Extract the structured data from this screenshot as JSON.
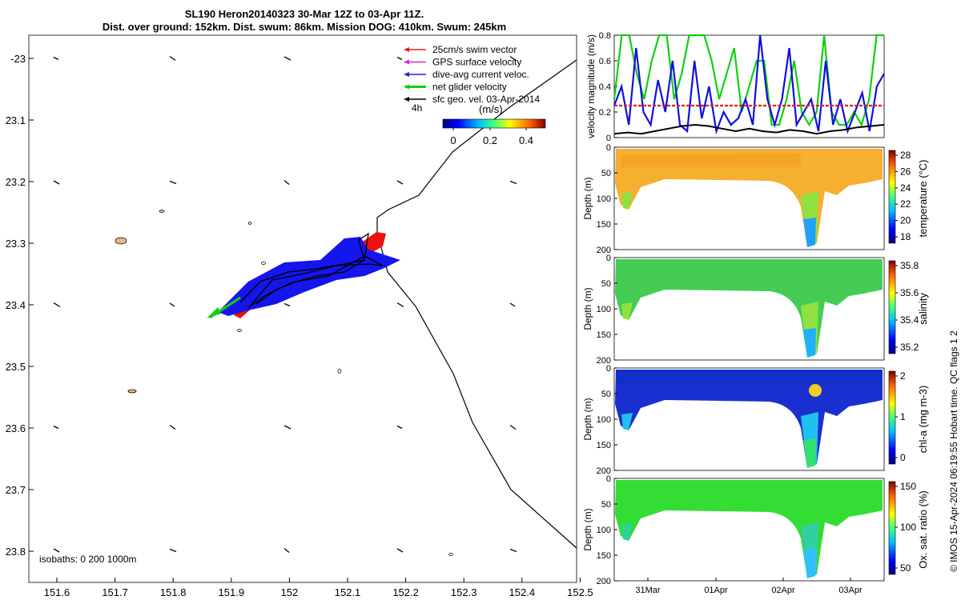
{
  "title": {
    "line1": "SL190 Heron20140323 30-Mar 12Z to 03-Apr 11Z.",
    "line2": "Dist. over ground: 152km. Dist. swum: 86km. Mission DOG: 410km. Swum: 245km"
  },
  "map": {
    "x_ticks": [
      "151.6",
      "151.7",
      "151.8",
      "151.9",
      "152",
      "152.1",
      "152.2",
      "152.3",
      "152.4",
      "152.5"
    ],
    "y_ticks": [
      "-23",
      "23.1",
      "23.2",
      "23.3",
      "23.4",
      "23.5",
      "23.6",
      "23.7",
      "23.8"
    ],
    "xlim": [
      151.55,
      152.52
    ],
    "ylim": [
      -22.96,
      -23.86
    ],
    "legend": [
      {
        "label": "25cm/s swim vector",
        "color": "#e02020"
      },
      {
        "label": "GPS surface velocity",
        "color": "#e020e0"
      },
      {
        "label": "dive-avg current veloc.",
        "color": "#2020e0"
      },
      {
        "label": "net glider velocity",
        "color": "#10d010"
      },
      {
        "label": "sfc geo. vel. 03-Apr-2014",
        "color": "#000000"
      }
    ],
    "legend_4h": "4h",
    "colorbar_unit": "(m/s)",
    "colorbar_ticks": [
      "0",
      "0.2",
      "0.4"
    ],
    "isobaths_label": "isobaths: 0    200  1000m"
  },
  "chart_data": [
    {
      "type": "line",
      "ylabel": "velocity magnitude (m/s)",
      "ylim": [
        0,
        0.8
      ],
      "y_ticks": [
        "0",
        "0.2",
        "0.4",
        "0.6",
        "0.8"
      ],
      "series": [
        {
          "name": "net glider velocity",
          "color": "#10d010",
          "values": [
            0.3,
            0.8,
            0.8,
            0.5,
            0.3,
            0.6,
            0.8,
            0.8,
            0.3,
            0.5,
            0.8,
            0.8,
            0.8,
            0.6,
            0.3,
            0.5,
            0.7,
            0.2,
            0.4,
            0.6,
            0.6,
            0.1,
            0.1,
            0.3,
            0.6,
            0.2,
            0.1,
            0.2,
            0.8,
            0.2,
            0.1,
            0.1,
            0.2,
            0.1,
            0.3,
            0.8,
            0.8
          ]
        },
        {
          "name": "dive-avg current veloc.",
          "color": "#1010e0",
          "values": [
            0.25,
            0.4,
            0.1,
            0.7,
            0.2,
            0.1,
            0.45,
            0.2,
            0.6,
            0.1,
            0.05,
            0.6,
            0.15,
            0.4,
            0.05,
            0.2,
            0.1,
            0.15,
            0.3,
            0.1,
            0.8,
            0.3,
            0.1,
            0.3,
            0.7,
            0.1,
            0.2,
            0.3,
            0.05,
            0.6,
            0.1,
            0.3,
            0.05,
            0.2,
            0.35,
            0.05,
            0.4,
            0.5
          ]
        },
        {
          "name": "25cm/s swim vector",
          "color": "#e02020",
          "values": [
            0.25,
            0.25,
            0.25,
            0.25,
            0.25,
            0.25,
            0.25,
            0.25,
            0.25,
            0.25
          ]
        },
        {
          "name": "sfc geo. vel.",
          "color": "#000000",
          "values": [
            0.03,
            0.04,
            0.03,
            0.05,
            0.07,
            0.09,
            0.1,
            0.09,
            0.07,
            0.05,
            0.07,
            0.05,
            0.04,
            0.06,
            0.05,
            0.03,
            0.05,
            0.06,
            0.08,
            0.09,
            0.1
          ]
        }
      ]
    },
    {
      "type": "heatmap",
      "ylabel": "Depth (m)",
      "y_ticks": [
        "0",
        "50",
        "100",
        "150",
        "200"
      ],
      "cbar_label": "temperature (°C)",
      "cbar_ticks": [
        "18",
        "20",
        "22",
        "24",
        "26",
        "28"
      ]
    },
    {
      "type": "heatmap",
      "ylabel": "Depth (m)",
      "y_ticks": [
        "0",
        "50",
        "100",
        "150",
        "200"
      ],
      "cbar_label": "salinity",
      "cbar_ticks": [
        "35.2",
        "35.4",
        "35.6",
        "35.8"
      ]
    },
    {
      "type": "heatmap",
      "ylabel": "Depth (m)",
      "y_ticks": [
        "0",
        "50",
        "100",
        "150",
        "200"
      ],
      "cbar_label": "chl-a (mg m-3)",
      "cbar_ticks": [
        "0",
        "1",
        "2"
      ]
    },
    {
      "type": "heatmap",
      "ylabel": "Depth (m)",
      "y_ticks": [
        "0",
        "50",
        "100",
        "150",
        "200"
      ],
      "cbar_label": "Ox. sat. ratio (%)",
      "cbar_ticks": [
        "50",
        "100",
        "150"
      ],
      "x_ticks": [
        "31Mar",
        "01Apr",
        "02Apr",
        "03Apr"
      ]
    }
  ],
  "side_note": "© IMOS 15-Apr-2024 06:19:55 Hobart time. QC flags 1  2"
}
